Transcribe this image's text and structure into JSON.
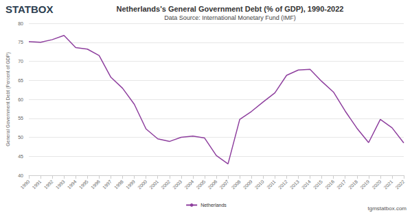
{
  "chart_data": {
    "type": "line",
    "title": "Netherlands's General Government Debt (% of GDP), 1990-2022",
    "subtitle": "Data Source: International Monetary Fund (IMF)",
    "y_label": "General Government Debt (Percent of GDP)",
    "annotations": [
      "STATBOX",
      "tgmstatbox.com"
    ],
    "categories": [
      "1990",
      "1991",
      "1992",
      "1993",
      "1994",
      "1995",
      "1996",
      "1997",
      "1998",
      "1999",
      "2000",
      "2001",
      "2002",
      "2003",
      "2004",
      "2005",
      "2006",
      "2007",
      "2008",
      "2009",
      "2010",
      "2011",
      "2012",
      "2013",
      "2014",
      "2015",
      "2016",
      "2017",
      "2018",
      "2019",
      "2020",
      "2021",
      "2022"
    ],
    "series": [
      {
        "name": "Netherlands",
        "color": "#8e3f9e",
        "values": [
          75.2,
          75.0,
          75.7,
          76.8,
          73.6,
          73.2,
          71.5,
          65.8,
          62.9,
          58.7,
          52.2,
          49.6,
          48.9,
          50.0,
          50.3,
          49.8,
          45.2,
          43.0,
          54.7,
          56.8,
          59.3,
          61.7,
          66.3,
          67.7,
          67.9,
          64.7,
          61.9,
          56.9,
          52.4,
          48.6,
          54.7,
          52.5,
          48.5
        ]
      }
    ],
    "ylim": [
      40,
      80
    ],
    "yticks": [
      40,
      45,
      50,
      55,
      60,
      65,
      70,
      75,
      80
    ],
    "grid": true,
    "legend": "bottom"
  }
}
